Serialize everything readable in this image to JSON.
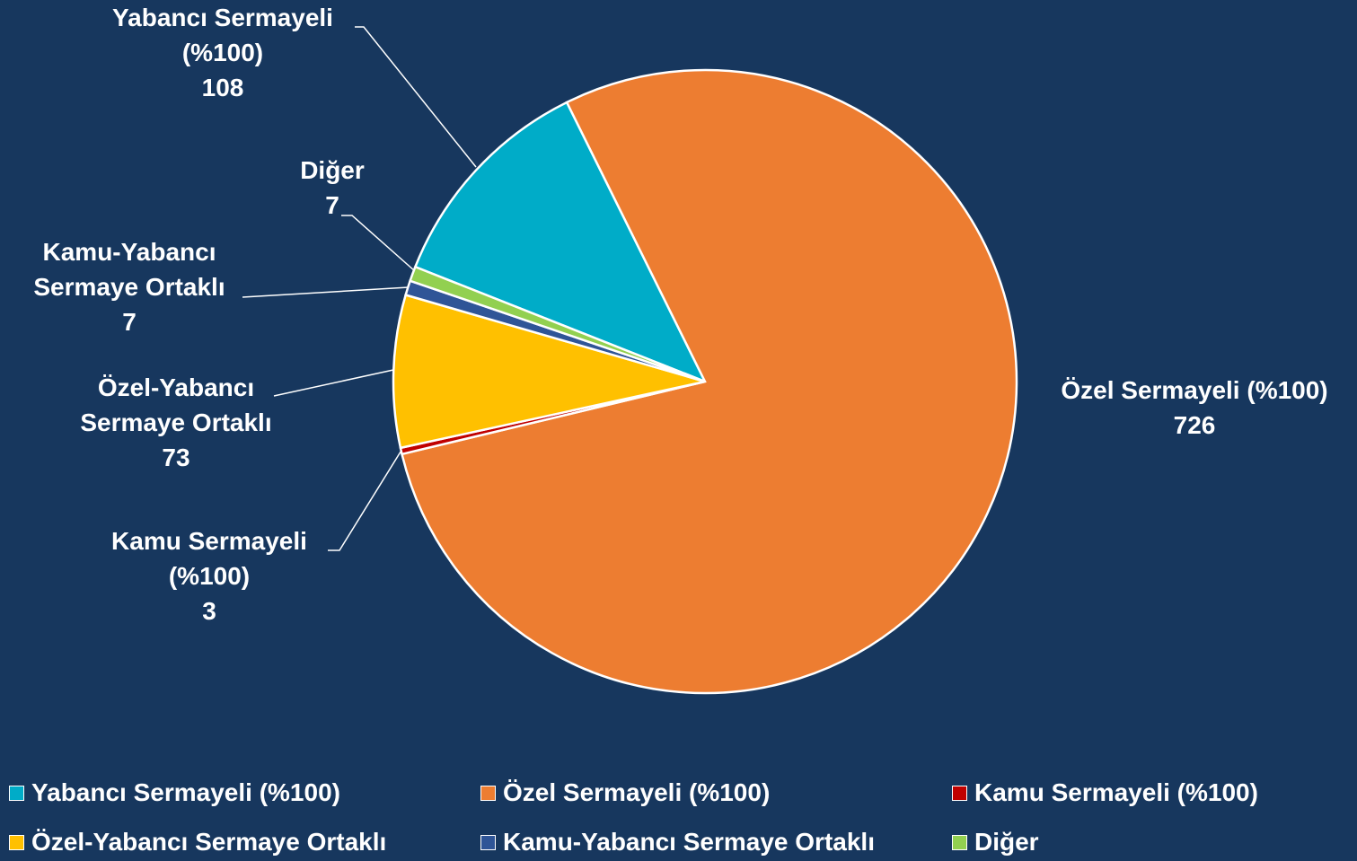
{
  "chart_data": {
    "type": "pie",
    "categories": [
      "Yabancı Sermayeli (%100)",
      "Özel Sermayeli (%100)",
      "Kamu Sermayeli (%100)",
      "Özel-Yabancı Sermaye Ortaklı",
      "Kamu-Yabancı Sermaye Ortaklı",
      "Diğer"
    ],
    "values": [
      108,
      726,
      3,
      73,
      7,
      7
    ],
    "colors": [
      "#00acc8",
      "#ed7d31",
      "#c00000",
      "#ffc000",
      "#2f5597",
      "#92d050"
    ],
    "legend": "bottom"
  }
}
